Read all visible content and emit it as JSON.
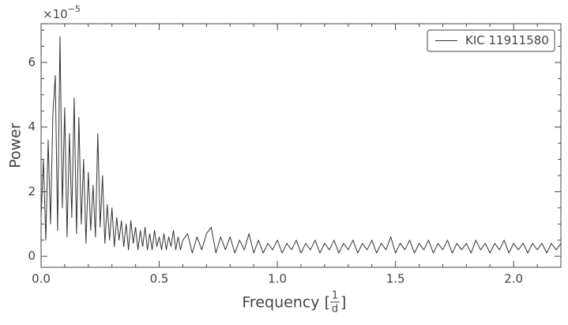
{
  "chart_data": {
    "type": "line",
    "ylabel": "Power",
    "xlabel": {
      "prefix": "Frequency [",
      "numerator": "1",
      "denominator": "d",
      "suffix": "]"
    },
    "offset_text": {
      "base": "×10",
      "exponent": "−5"
    },
    "xlim": [
      0,
      2.2
    ],
    "ylim": [
      -0.34,
      7.2
    ],
    "xticks": [
      {
        "value": 0,
        "label": "0.0"
      },
      0.5,
      {
        "value": 1,
        "label": "1.0"
      },
      1.5,
      {
        "value": 2,
        "label": "2.0"
      }
    ],
    "yticks": [
      0,
      2,
      4,
      6
    ],
    "xminorticks": [
      0.1,
      0.2,
      0.3,
      0.4,
      0.6,
      0.7,
      0.8,
      0.9,
      1.1,
      1.2,
      1.3,
      1.4,
      1.6,
      1.7,
      1.8,
      1.9,
      2.1
    ],
    "yminorticks": [
      0.5,
      1,
      1.5,
      2.5,
      3,
      3.5,
      4.5,
      5,
      5.5,
      6.5,
      7
    ],
    "legend": "upper right",
    "series": [
      {
        "name": "KIC 11911580",
        "color": "#333333",
        "x": [
          0,
          0.01,
          0.02,
          0.03,
          0.04,
          0.05,
          0.06,
          0.07,
          0.08,
          0.09,
          0.1,
          0.11,
          0.12,
          0.13,
          0.14,
          0.15,
          0.16,
          0.17,
          0.18,
          0.19,
          0.2,
          0.21,
          0.22,
          0.23,
          0.24,
          0.25,
          0.26,
          0.27,
          0.28,
          0.29,
          0.3,
          0.31,
          0.32,
          0.33,
          0.34,
          0.35,
          0.36,
          0.37,
          0.38,
          0.39,
          0.4,
          0.41,
          0.42,
          0.43,
          0.44,
          0.45,
          0.46,
          0.47,
          0.48,
          0.49,
          0.5,
          0.51,
          0.52,
          0.53,
          0.54,
          0.55,
          0.56,
          0.57,
          0.58,
          0.59,
          0.6,
          0.62,
          0.64,
          0.66,
          0.68,
          0.7,
          0.72,
          0.74,
          0.76,
          0.78,
          0.8,
          0.82,
          0.84,
          0.86,
          0.88,
          0.9,
          0.92,
          0.94,
          0.96,
          0.98,
          1,
          1.02,
          1.04,
          1.06,
          1.08,
          1.1,
          1.12,
          1.14,
          1.16,
          1.18,
          1.2,
          1.22,
          1.24,
          1.26,
          1.28,
          1.3,
          1.32,
          1.34,
          1.36,
          1.38,
          1.4,
          1.42,
          1.44,
          1.46,
          1.48,
          1.5,
          1.52,
          1.54,
          1.56,
          1.58,
          1.6,
          1.62,
          1.64,
          1.66,
          1.68,
          1.7,
          1.72,
          1.74,
          1.76,
          1.78,
          1.8,
          1.82,
          1.84,
          1.86,
          1.88,
          1.9,
          1.92,
          1.94,
          1.96,
          1.98,
          2,
          2.02,
          2.04,
          2.06,
          2.08,
          2.1,
          2.12,
          2.14,
          2.16,
          2.18,
          2.2
        ],
        "values": [
          1.2,
          3.0,
          0.5,
          3.6,
          1.0,
          4.4,
          5.6,
          0.8,
          6.8,
          1.5,
          4.6,
          0.6,
          3.8,
          1.2,
          4.9,
          0.7,
          4.3,
          1.0,
          3.0,
          0.4,
          2.6,
          0.8,
          2.2,
          0.6,
          3.8,
          0.9,
          2.5,
          0.4,
          1.6,
          0.5,
          1.5,
          0.3,
          1.2,
          0.5,
          1.1,
          0.3,
          1.0,
          0.2,
          1.1,
          0.4,
          0.9,
          0.2,
          0.8,
          0.3,
          0.9,
          0.2,
          0.7,
          0.2,
          0.8,
          0.3,
          0.6,
          0.2,
          0.7,
          0.2,
          0.6,
          0.3,
          0.8,
          0.2,
          0.6,
          0.2,
          0.5,
          0.7,
          0.1,
          0.6,
          0.2,
          0.7,
          0.9,
          0.1,
          0.6,
          0.2,
          0.6,
          0.1,
          0.5,
          0.2,
          0.7,
          0.1,
          0.5,
          0.1,
          0.4,
          0.2,
          0.5,
          0.1,
          0.4,
          0.2,
          0.5,
          0.1,
          0.4,
          0.2,
          0.5,
          0.1,
          0.4,
          0.2,
          0.5,
          0.1,
          0.4,
          0.2,
          0.5,
          0.1,
          0.4,
          0.2,
          0.5,
          0.1,
          0.4,
          0.2,
          0.6,
          0.1,
          0.4,
          0.2,
          0.5,
          0.1,
          0.4,
          0.2,
          0.5,
          0.1,
          0.4,
          0.2,
          0.5,
          0.1,
          0.4,
          0.2,
          0.4,
          0.1,
          0.5,
          0.2,
          0.4,
          0.1,
          0.4,
          0.2,
          0.5,
          0.1,
          0.4,
          0.2,
          0.4,
          0.1,
          0.4,
          0.2,
          0.4,
          0.1,
          0.4,
          0.2,
          0.4
        ]
      }
    ]
  }
}
